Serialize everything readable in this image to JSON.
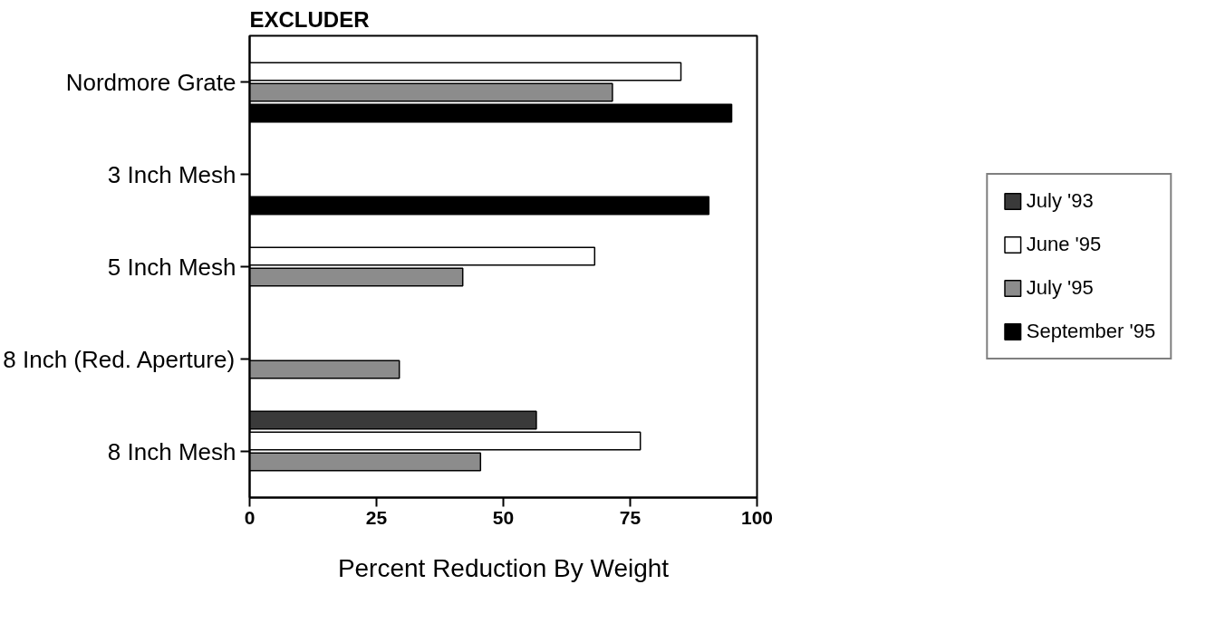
{
  "chart_data": {
    "type": "bar",
    "orientation": "horizontal",
    "ylabel": "EXCLUDER",
    "xlabel": "Percent Reduction By Weight",
    "categories": [
      "Nordmore Grate",
      "3 Inch Mesh",
      "5 Inch Mesh",
      "8 Inch (Red. Aperture)",
      "8 Inch Mesh"
    ],
    "series": [
      {
        "name": "July '93",
        "color": "#3a3a3a",
        "values": [
          null,
          null,
          null,
          null,
          56.5
        ]
      },
      {
        "name": "June '95",
        "color": "#ffffff",
        "values": [
          85,
          null,
          68,
          null,
          77
        ]
      },
      {
        "name": "July '95",
        "color": "#8c8c8c",
        "values": [
          71.5,
          null,
          42,
          29.5,
          45.5
        ]
      },
      {
        "name": "September '95",
        "color": "#000000",
        "values": [
          95,
          90.5,
          null,
          null,
          null
        ]
      }
    ],
    "xlim": [
      0,
      100
    ],
    "xticks": [
      0,
      25,
      50,
      75,
      100
    ],
    "grid": false,
    "legend": "right"
  }
}
